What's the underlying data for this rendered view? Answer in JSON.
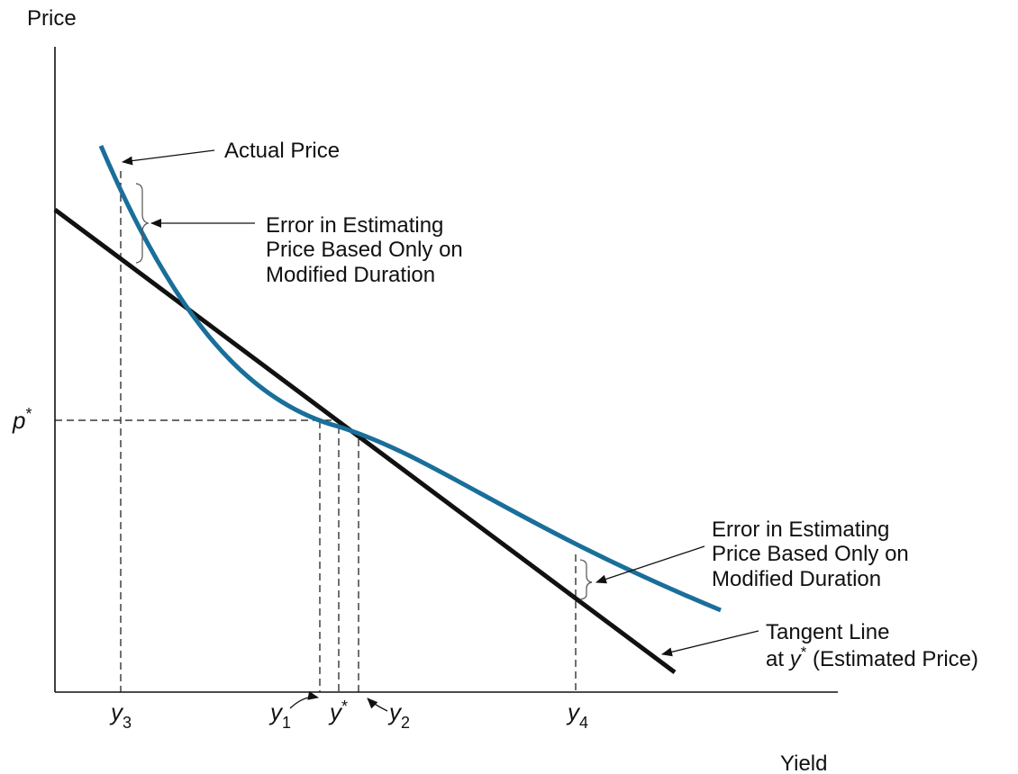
{
  "colors": {
    "curve": "#1a6f9a",
    "tangent": "#111111",
    "text": "#111111"
  },
  "axes": {
    "y_label": "Price",
    "x_label": "Yield"
  },
  "price_marker": {
    "symbol": "p",
    "sup": "*"
  },
  "yield_markers": {
    "y3": {
      "symbol": "y",
      "sub": "3"
    },
    "y1": {
      "symbol": "y",
      "sub": "1"
    },
    "ystar": {
      "symbol": "y",
      "sup": "*"
    },
    "y2": {
      "symbol": "y",
      "sub": "2"
    },
    "y4": {
      "symbol": "y",
      "sub": "4"
    }
  },
  "annotations": {
    "actual_price": "Actual Price",
    "error_upper": [
      "Error in Estimating",
      "Price Based Only on",
      "Modified Duration"
    ],
    "error_lower": [
      "Error in Estimating",
      "Price Based Only on",
      "Modified Duration"
    ],
    "tangent_line": {
      "line1": "Tangent Line",
      "line2_prefix": "at ",
      "line2_symbol": "y",
      "line2_sup": "*",
      "line2_suffix": " (Estimated Price)"
    }
  }
}
